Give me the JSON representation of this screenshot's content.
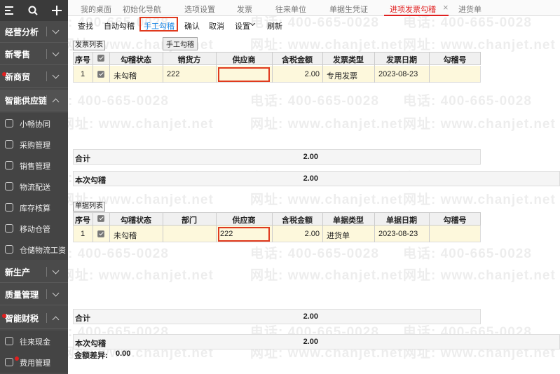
{
  "sidebar": {
    "groups_top": [
      "经营分析",
      "新零售",
      "新商贸",
      "智能供应链"
    ],
    "supply_chain_items": [
      "小畅协同",
      "采购管理",
      "销售管理",
      "物流配送",
      "库存核算",
      "移动仓管",
      "仓储物流工资"
    ],
    "groups_bottom": [
      "新生产",
      "质量管理",
      "智能财税"
    ],
    "finance_items": [
      "往来现金",
      "费用管理"
    ]
  },
  "tabs": [
    "我的桌面",
    "初始化导航",
    "选项设置",
    "发票",
    "往来单位",
    "单据生凭证",
    "进项发票勾稽",
    "进货单"
  ],
  "tab_close": "×",
  "toolbar": [
    "查找",
    "自动勾稽",
    "手工勾稽",
    "确认",
    "取消",
    "设置",
    "刷新"
  ],
  "tooltip": "手工勾稽",
  "watermark": {
    "phone": "电话: 400-665-0028",
    "site": "网址: www.chanjet.net"
  },
  "invoice_list": {
    "label": "发票列表",
    "columns": [
      "序号",
      "勾稽状态",
      "销货方",
      "供应商",
      "含税金额",
      "发票类型",
      "发票日期",
      "勾稽号"
    ],
    "rows": [
      [
        "1",
        "未勾稽",
        "222",
        null,
        "2.00",
        "专用发票",
        "2023-08-23",
        null
      ]
    ],
    "total_label": "合计",
    "total": "2.00",
    "current_label": "本次勾稽",
    "current": "2.00"
  },
  "document_list": {
    "label": "单据列表",
    "columns": [
      "序号",
      "勾稽状态",
      "部门",
      "供应商",
      "含税金额",
      "单据类型",
      "单据日期",
      "勾稽号"
    ],
    "rows": [
      [
        "1",
        "未勾稽",
        null,
        "222",
        "2.00",
        "进货单",
        "2023-08-23",
        null
      ]
    ],
    "total_label": "合计",
    "total": "2.00",
    "current_label": "本次勾稽",
    "current": "2.00",
    "diff_label": "金额差异:",
    "diff": "0.00"
  }
}
